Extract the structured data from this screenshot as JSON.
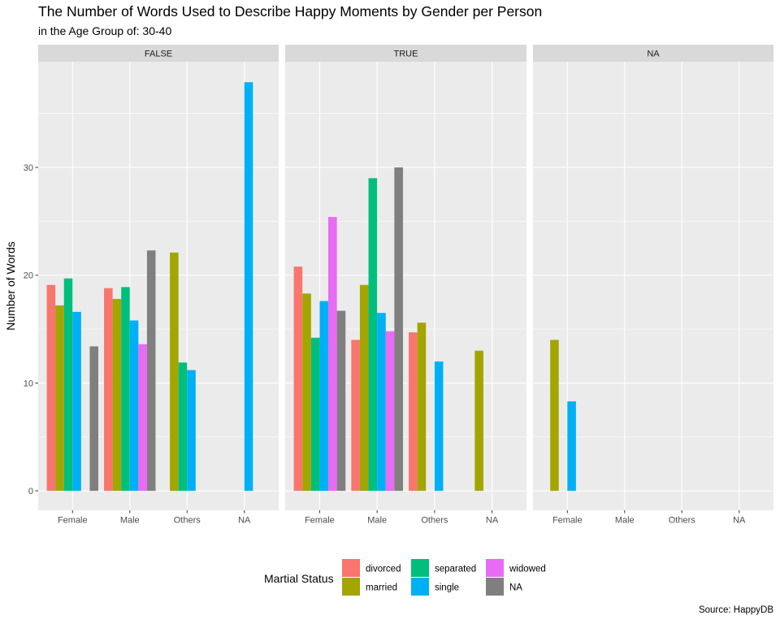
{
  "chart_data": {
    "type": "bar",
    "title": "The Number of Words Used to Describe Happy Moments by Gender per Person",
    "subtitle": "in the Age Group of: 30-40",
    "xlabel": "",
    "ylabel": "Number of Words",
    "caption": "Source: HappyDB",
    "ylim": [
      -1.8,
      39.8
    ],
    "yticks": [
      0,
      10,
      20,
      30
    ],
    "grid": true,
    "legend": {
      "title": "Martial Status",
      "position": "bottom",
      "entries": [
        {
          "name": "divorced",
          "color": "#F8766D"
        },
        {
          "name": "married",
          "color": "#A3A500"
        },
        {
          "name": "separated",
          "color": "#00BF7D"
        },
        {
          "name": "single",
          "color": "#00B0F6"
        },
        {
          "name": "widowed",
          "color": "#E76BF3"
        },
        {
          "name": "NA",
          "color": "#7F7F7F"
        }
      ]
    },
    "categories": [
      "Female",
      "Male",
      "Others",
      "NA"
    ],
    "panels": [
      {
        "label": "FALSE",
        "series": [
          {
            "name": "divorced",
            "values": [
              19.1,
              18.8,
              null,
              null
            ]
          },
          {
            "name": "married",
            "values": [
              17.2,
              17.8,
              22.1,
              null
            ]
          },
          {
            "name": "separated",
            "values": [
              19.7,
              18.9,
              11.9,
              null
            ]
          },
          {
            "name": "single",
            "values": [
              16.6,
              15.8,
              11.2,
              37.9
            ]
          },
          {
            "name": "widowed",
            "values": [
              null,
              13.6,
              null,
              null
            ]
          },
          {
            "name": "NA",
            "values": [
              13.4,
              22.3,
              null,
              null
            ]
          }
        ]
      },
      {
        "label": "TRUE",
        "series": [
          {
            "name": "divorced",
            "values": [
              20.8,
              14.0,
              14.7,
              null
            ]
          },
          {
            "name": "married",
            "values": [
              18.3,
              19.1,
              15.6,
              13.0
            ]
          },
          {
            "name": "separated",
            "values": [
              14.2,
              29.0,
              null,
              null
            ]
          },
          {
            "name": "single",
            "values": [
              17.6,
              16.5,
              12.0,
              null
            ]
          },
          {
            "name": "widowed",
            "values": [
              25.4,
              14.8,
              null,
              null
            ]
          },
          {
            "name": "NA",
            "values": [
              16.7,
              30.0,
              null,
              null
            ]
          }
        ]
      },
      {
        "label": "NA",
        "series": [
          {
            "name": "divorced",
            "values": [
              null,
              null,
              null,
              null
            ]
          },
          {
            "name": "married",
            "values": [
              14.0,
              null,
              null,
              null
            ]
          },
          {
            "name": "separated",
            "values": [
              null,
              null,
              null,
              null
            ]
          },
          {
            "name": "single",
            "values": [
              8.3,
              null,
              null,
              null
            ]
          },
          {
            "name": "widowed",
            "values": [
              null,
              null,
              null,
              null
            ]
          },
          {
            "name": "NA",
            "values": [
              null,
              null,
              null,
              null
            ]
          }
        ]
      }
    ]
  }
}
